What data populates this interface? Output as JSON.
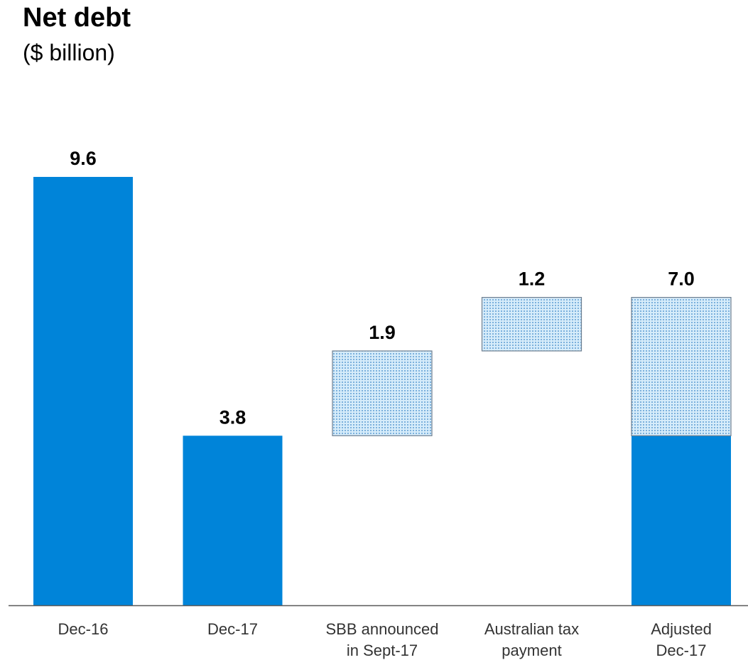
{
  "title": "Net debt",
  "subtitle": "($ billion)",
  "colors": {
    "solid": "#0084D9",
    "hatch_fill": "#d6ecfa",
    "hatch_dot": "#3a86c8",
    "hatch_border": "#6e7f90",
    "axis": "#595959"
  },
  "chart_data": {
    "type": "bar",
    "subtype": "waterfall",
    "title": "Net debt",
    "subtitle": "($ billion)",
    "categories": [
      [
        "Dec-16"
      ],
      [
        "Dec-17"
      ],
      [
        "SBB announced",
        "in Sept-17"
      ],
      [
        "Australian tax",
        "payment"
      ],
      [
        "Adjusted",
        "Dec-17"
      ]
    ],
    "bars": [
      {
        "label": "9.6",
        "segments": [
          {
            "base": 0,
            "value": 9.6,
            "style": "solid"
          }
        ]
      },
      {
        "label": "3.8",
        "segments": [
          {
            "base": 0,
            "value": 3.8,
            "style": "solid"
          }
        ]
      },
      {
        "label": "1.9",
        "segments": [
          {
            "base": 3.8,
            "value": 1.9,
            "style": "hatched"
          }
        ]
      },
      {
        "label": "1.2",
        "segments": [
          {
            "base": 5.7,
            "value": 1.2,
            "style": "hatched"
          }
        ]
      },
      {
        "label": "7.0",
        "segments": [
          {
            "base": 0,
            "value": 3.8,
            "style": "solid"
          },
          {
            "base": 3.8,
            "value": 3.1,
            "style": "hatched"
          }
        ]
      }
    ],
    "ylim": [
      0,
      9.6
    ],
    "grid": false,
    "legend": "none"
  }
}
